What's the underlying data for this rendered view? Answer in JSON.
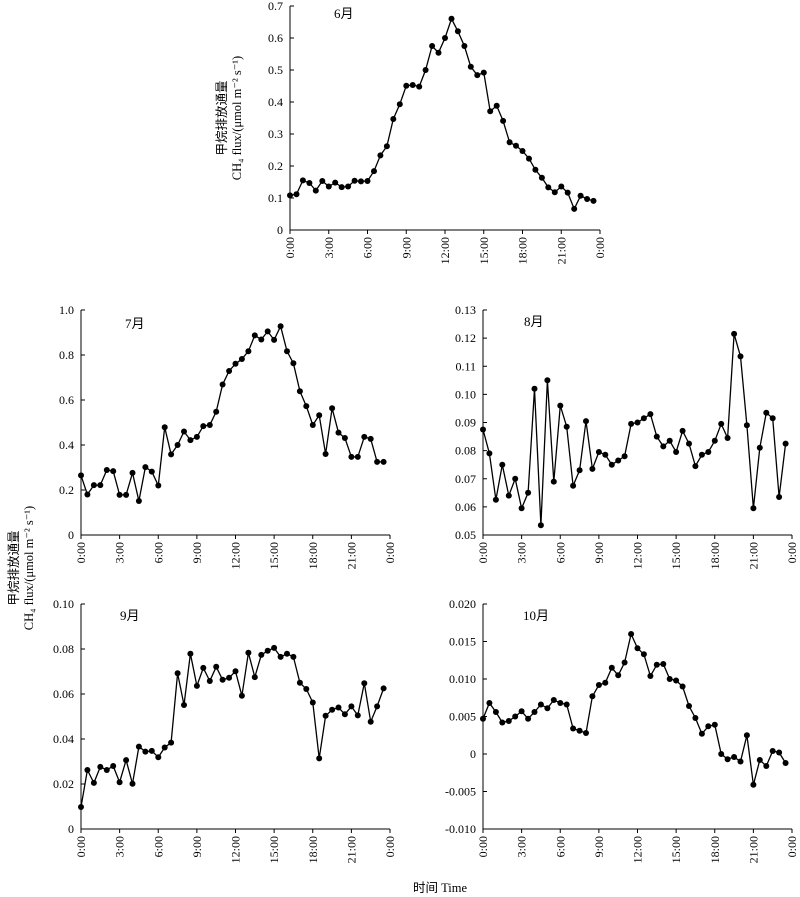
{
  "ylabel_cn": "甲烷排放通量",
  "ylabel_en": "CH₄ flux/(μmol m⁻² s⁻¹)",
  "xlabel": "时间 Time",
  "chart_data": [
    {
      "type": "line",
      "title": "6月",
      "ylim": [
        0,
        0.7
      ],
      "yticks": [
        "0",
        "0.1",
        "0.2",
        "0.3",
        "0.4",
        "0.5",
        "0.6",
        "0.7"
      ],
      "xticks": [
        "0:00",
        "3:00",
        "6:00",
        "9:00",
        "12:00",
        "15:00",
        "18:00",
        "21:00",
        "0:00"
      ],
      "xlim": [
        0,
        24
      ],
      "x_unit": "hour",
      "values": [
        0.108,
        0.112,
        0.155,
        0.147,
        0.123,
        0.153,
        0.136,
        0.148,
        0.134,
        0.136,
        0.154,
        0.152,
        0.153,
        0.184,
        0.233,
        0.262,
        0.347,
        0.393,
        0.451,
        0.453,
        0.448,
        0.5,
        0.575,
        0.554,
        0.6,
        0.66,
        0.621,
        0.575,
        0.51,
        0.484,
        0.492,
        0.371,
        0.388,
        0.341,
        0.274,
        0.263,
        0.247,
        0.223,
        0.188,
        0.163,
        0.133,
        0.118,
        0.136,
        0.117,
        0.066,
        0.107,
        0.097,
        0.091
      ]
    },
    {
      "type": "line",
      "title": "7月",
      "ylim": [
        0,
        1.0
      ],
      "yticks": [
        "0",
        "0.2",
        "0.4",
        "0.6",
        "0.8",
        "1.0"
      ],
      "xticks": [
        "0:00",
        "3:00",
        "6:00",
        "9:00",
        "12:00",
        "15:00",
        "18:00",
        "21:00",
        "0:00"
      ],
      "xlim": [
        0,
        24
      ],
      "x_unit": "hour",
      "values": [
        0.265,
        0.18,
        0.222,
        0.222,
        0.289,
        0.284,
        0.178,
        0.178,
        0.276,
        0.151,
        0.302,
        0.282,
        0.22,
        0.479,
        0.358,
        0.4,
        0.46,
        0.422,
        0.436,
        0.484,
        0.489,
        0.548,
        0.669,
        0.729,
        0.761,
        0.782,
        0.817,
        0.887,
        0.869,
        0.905,
        0.867,
        0.928,
        0.817,
        0.763,
        0.639,
        0.573,
        0.489,
        0.532,
        0.36,
        0.563,
        0.455,
        0.431,
        0.347,
        0.347,
        0.436,
        0.427,
        0.325,
        0.325
      ]
    },
    {
      "type": "line",
      "title": "8月",
      "ylim": [
        0.05,
        0.13
      ],
      "yticks": [
        "0.05",
        "0.06",
        "0.07",
        "0.08",
        "0.09",
        "0.10",
        "0.11",
        "0.12",
        "0.13"
      ],
      "xticks": [
        "0:00",
        "3:00",
        "6:00",
        "9:00",
        "12:00",
        "15:00",
        "18:00",
        "21:00",
        "0:00"
      ],
      "xlim": [
        0,
        24
      ],
      "x_unit": "hour",
      "values": [
        0.0875,
        0.079,
        0.0625,
        0.075,
        0.064,
        0.07,
        0.0595,
        0.065,
        0.102,
        0.0535,
        0.105,
        0.069,
        0.096,
        0.0885,
        0.0675,
        0.073,
        0.0905,
        0.0735,
        0.0795,
        0.0785,
        0.075,
        0.0765,
        0.078,
        0.0895,
        0.09,
        0.0915,
        0.093,
        0.085,
        0.0815,
        0.0835,
        0.0795,
        0.087,
        0.0825,
        0.0745,
        0.0785,
        0.0795,
        0.0835,
        0.0895,
        0.0845,
        0.1215,
        0.1135,
        0.089,
        0.0595,
        0.081,
        0.0935,
        0.0915,
        0.0635,
        0.0825
      ]
    },
    {
      "type": "line",
      "title": "9月",
      "ylim": [
        0,
        0.1
      ],
      "yticks": [
        "0",
        "0.02",
        "0.04",
        "0.06",
        "0.08",
        "0.10"
      ],
      "xticks": [
        "0:00",
        "3:00",
        "6:00",
        "9:00",
        "12:00",
        "15:00",
        "18:00",
        "21:00",
        "0:00"
      ],
      "xlim": [
        0,
        24
      ],
      "x_unit": "hour",
      "values": [
        0.0098,
        0.0262,
        0.0205,
        0.0276,
        0.0262,
        0.028,
        0.0208,
        0.0306,
        0.0201,
        0.0366,
        0.0344,
        0.0347,
        0.0319,
        0.0362,
        0.0384,
        0.0692,
        0.0551,
        0.0779,
        0.0636,
        0.0716,
        0.0658,
        0.0721,
        0.0663,
        0.0672,
        0.0701,
        0.0592,
        0.0783,
        0.0675,
        0.0774,
        0.0792,
        0.0805,
        0.0765,
        0.0779,
        0.0765,
        0.065,
        0.0622,
        0.0562,
        0.0314,
        0.0503,
        0.053,
        0.054,
        0.051,
        0.0545,
        0.0505,
        0.0648,
        0.0477,
        0.0545,
        0.0625
      ]
    },
    {
      "type": "line",
      "title": "10月",
      "ylim": [
        -0.01,
        0.02
      ],
      "yticks": [
        "-0.010",
        "-0.005",
        "0",
        "0.005",
        "0.010",
        "0.015",
        "0.020"
      ],
      "xticks": [
        "0:00",
        "3:00",
        "6:00",
        "9:00",
        "12:00",
        "15:00",
        "18:00",
        "21:00",
        "0:00"
      ],
      "xlim": [
        0,
        24
      ],
      "x_unit": "hour",
      "values": [
        0.0047,
        0.0068,
        0.0056,
        0.0042,
        0.0044,
        0.005,
        0.0057,
        0.0047,
        0.0056,
        0.0066,
        0.0061,
        0.0072,
        0.0068,
        0.0066,
        0.0034,
        0.0031,
        0.0028,
        0.0077,
        0.0092,
        0.0095,
        0.0115,
        0.0105,
        0.0122,
        0.016,
        0.0141,
        0.0133,
        0.0104,
        0.0119,
        0.012,
        0.01,
        0.0098,
        0.009,
        0.0064,
        0.0048,
        0.0027,
        0.0037,
        0.0039,
        0.0,
        -0.0007,
        -0.0004,
        -0.001,
        0.0025,
        -0.0041,
        -0.0008,
        -0.0016,
        0.0004,
        0.0002,
        -0.0012
      ]
    }
  ]
}
